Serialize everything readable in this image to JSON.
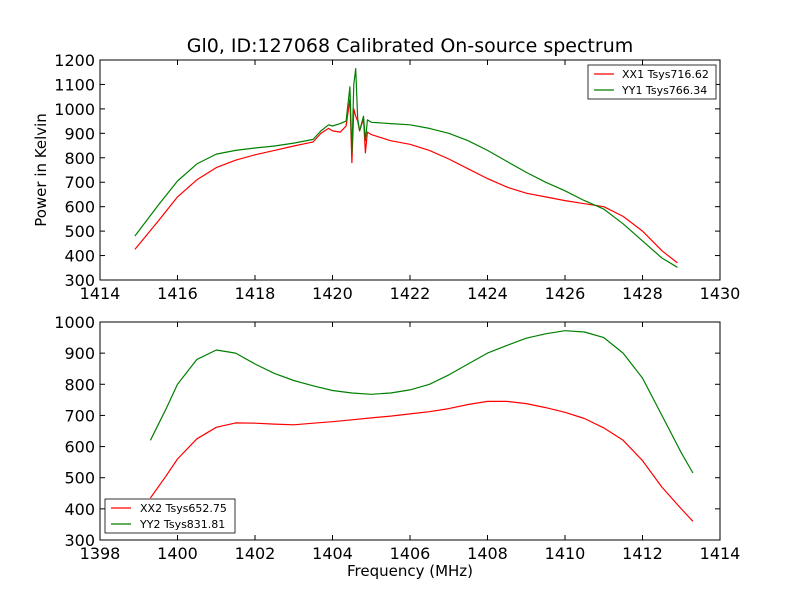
{
  "chart_data": [
    {
      "type": "line",
      "title": "Gl0, ID:127068 Calibrated On-source spectrum",
      "xlabel": "",
      "ylabel": "Power in Kelvin",
      "xlim": [
        1414,
        1430
      ],
      "ylim": [
        300,
        1200
      ],
      "xticks": [
        1414,
        1416,
        1418,
        1420,
        1422,
        1424,
        1426,
        1428,
        1430
      ],
      "yticks": [
        300,
        400,
        500,
        600,
        700,
        800,
        900,
        1000,
        1100,
        1200
      ],
      "grid": false,
      "legend_position": "top-right",
      "series": [
        {
          "name": "XX1 Tsys716.62",
          "color": "#ff0000",
          "x": [
            1414.9,
            1415.5,
            1416,
            1416.5,
            1417,
            1417.5,
            1418,
            1418.5,
            1419,
            1419.5,
            1419.7,
            1419.9,
            1420.0,
            1420.2,
            1420.35,
            1420.45,
            1420.5,
            1420.55,
            1420.6,
            1420.65,
            1420.7,
            1420.8,
            1420.85,
            1420.9,
            1421,
            1421.5,
            1422,
            1422.5,
            1423,
            1423.5,
            1424,
            1424.5,
            1425,
            1425.5,
            1426,
            1426.5,
            1427,
            1427.5,
            1428,
            1428.5,
            1428.9
          ],
          "y": [
            425,
            540,
            640,
            710,
            760,
            790,
            812,
            830,
            848,
            865,
            900,
            920,
            910,
            905,
            930,
            1040,
            780,
            1000,
            970,
            950,
            910,
            960,
            820,
            905,
            895,
            870,
            855,
            830,
            795,
            755,
            715,
            680,
            655,
            640,
            625,
            612,
            600,
            560,
            500,
            420,
            370
          ]
        },
        {
          "name": "YY1 Tsys766.34",
          "color": "#008000",
          "x": [
            1414.9,
            1415.5,
            1416,
            1416.5,
            1417,
            1417.5,
            1418,
            1418.5,
            1419,
            1419.5,
            1419.7,
            1419.9,
            1420.0,
            1420.2,
            1420.35,
            1420.45,
            1420.5,
            1420.55,
            1420.6,
            1420.65,
            1420.7,
            1420.8,
            1420.85,
            1420.9,
            1421,
            1421.5,
            1422,
            1422.5,
            1423,
            1423.5,
            1424,
            1424.5,
            1425,
            1425.5,
            1426,
            1426.5,
            1427,
            1427.5,
            1428,
            1428.5,
            1428.9
          ],
          "y": [
            480,
            605,
            705,
            775,
            815,
            830,
            840,
            848,
            860,
            875,
            910,
            935,
            930,
            940,
            950,
            1090,
            820,
            1100,
            1165,
            960,
            910,
            970,
            870,
            955,
            945,
            940,
            935,
            920,
            900,
            870,
            830,
            785,
            740,
            700,
            665,
            625,
            590,
            530,
            460,
            390,
            352
          ]
        }
      ]
    },
    {
      "type": "line",
      "title": "",
      "xlabel": "Frequency (MHz)",
      "ylabel": "",
      "xlim": [
        1398,
        1414
      ],
      "ylim": [
        300,
        1000
      ],
      "xticks": [
        1398,
        1400,
        1402,
        1404,
        1406,
        1408,
        1410,
        1412,
        1414
      ],
      "yticks": [
        300,
        400,
        500,
        600,
        700,
        800,
        900,
        1000
      ],
      "grid": false,
      "legend_position": "bottom-left",
      "series": [
        {
          "name": "XX2 Tsys652.75",
          "color": "#ff0000",
          "x": [
            1399.3,
            1399.7,
            1400,
            1400.5,
            1401,
            1401.5,
            1402,
            1402.5,
            1403,
            1403.5,
            1404,
            1404.5,
            1405,
            1405.5,
            1406,
            1406.5,
            1407,
            1407.5,
            1408,
            1408.5,
            1409,
            1409.5,
            1410,
            1410.5,
            1411,
            1411.5,
            1412,
            1412.5,
            1413,
            1413.3
          ],
          "y": [
            435,
            505,
            560,
            625,
            662,
            676,
            675,
            672,
            670,
            675,
            680,
            686,
            692,
            698,
            705,
            712,
            722,
            735,
            745,
            745,
            738,
            725,
            710,
            690,
            660,
            620,
            555,
            470,
            400,
            360
          ]
        },
        {
          "name": "YY2 Tsys831.81",
          "color": "#008000",
          "x": [
            1399.3,
            1399.7,
            1400,
            1400.5,
            1401,
            1401.5,
            1402,
            1402.5,
            1403,
            1403.5,
            1404,
            1404.5,
            1405,
            1405.5,
            1406,
            1406.5,
            1407,
            1407.5,
            1408,
            1408.5,
            1409,
            1409.5,
            1410,
            1410.5,
            1411,
            1411.5,
            1412,
            1412.5,
            1413,
            1413.3
          ],
          "y": [
            620,
            720,
            800,
            880,
            910,
            900,
            865,
            835,
            812,
            795,
            780,
            772,
            768,
            772,
            782,
            800,
            830,
            865,
            900,
            925,
            948,
            962,
            972,
            968,
            950,
            900,
            820,
            700,
            580,
            515
          ]
        }
      ]
    }
  ]
}
